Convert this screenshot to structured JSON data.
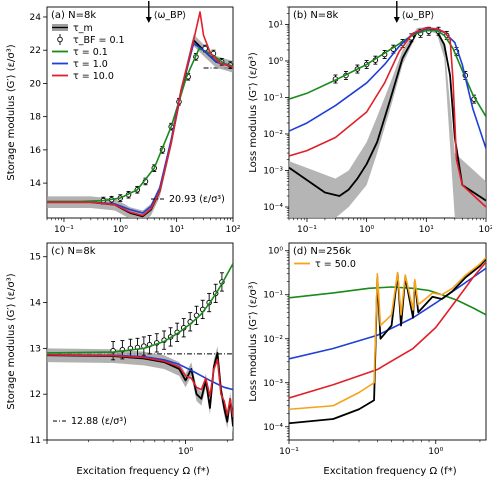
{
  "figure": {
    "xlabel": "Excitation frequency Ω (f*)"
  },
  "chart_data": [
    {
      "id": "a",
      "type": "line",
      "title": "(a) N=8k",
      "ylabel": "Storage modulus ⟨G′⟩ (ε/σ³)",
      "xscale": "log",
      "yscale": "linear",
      "xlim": [
        0.05,
        100
      ],
      "ylim": [
        11.9,
        24.6
      ],
      "xticks": [
        {
          "v": 0.1,
          "label": "10⁻¹"
        },
        {
          "v": 1,
          "label": "10⁰"
        },
        {
          "v": 10,
          "label": "10¹"
        },
        {
          "v": 100,
          "label": "10²"
        }
      ],
      "yticks": [
        {
          "v": 14,
          "label": "14"
        },
        {
          "v": 16,
          "label": "16"
        },
        {
          "v": 18,
          "label": "18"
        },
        {
          "v": 20,
          "label": "20"
        },
        {
          "v": 22,
          "label": "22"
        },
        {
          "v": 24,
          "label": "24"
        }
      ],
      "arrow": {
        "x": 3.2,
        "label": "⟨ω_BP⟩"
      },
      "reference": {
        "y": 20.93,
        "x_from": 30,
        "label": "20.93 (ε/σ³)"
      },
      "legend": [
        {
          "label": "τ_m",
          "kind": "band"
        },
        {
          "label": "τ_BF = 0.1",
          "kind": "errorbar"
        },
        {
          "label": "τ = 0.1",
          "kind": "line",
          "color": "#1a8a1a"
        },
        {
          "label": "τ = 1.0",
          "kind": "line",
          "color": "#1f3fd6"
        },
        {
          "label": "τ = 10.0",
          "kind": "line",
          "color": "#e0202a"
        }
      ],
      "series": [
        {
          "name": "τ_m",
          "color": "#000000",
          "band": 0.35,
          "x": [
            0.05,
            0.3,
            0.8,
            1.5,
            2.5,
            3.5,
            5,
            8,
            12,
            20,
            30,
            50,
            100
          ],
          "y": [
            12.85,
            12.85,
            12.7,
            12.2,
            12.0,
            12.4,
            13.5,
            16.5,
            19.5,
            22.6,
            22.0,
            21.3,
            21.0
          ]
        },
        {
          "name": "τ_BF = 0.1",
          "color": "#000000",
          "markers": true,
          "x": [
            0.5,
            0.7,
            1,
            1.4,
            2,
            2.8,
            4,
            5.6,
            8,
            11,
            16,
            22,
            32,
            45,
            63,
            90
          ],
          "y": [
            12.95,
            13.0,
            13.1,
            13.3,
            13.6,
            14.1,
            14.9,
            16.0,
            17.4,
            18.9,
            20.4,
            21.6,
            22.1,
            21.8,
            21.3,
            21.1
          ]
        },
        {
          "name": "τ = 0.1",
          "color": "#1a8a1a",
          "x": [
            0.05,
            0.2,
            0.5,
            1,
            2,
            4,
            8,
            15,
            25,
            40,
            70,
            100
          ],
          "y": [
            12.9,
            12.9,
            12.95,
            13.1,
            13.6,
            14.9,
            17.4,
            20.4,
            22.1,
            21.8,
            21.2,
            21.05
          ]
        },
        {
          "name": "τ = 1.0",
          "color": "#1f3fd6",
          "x": [
            0.05,
            0.3,
            0.8,
            1.5,
            2.5,
            3.5,
            5,
            8,
            12,
            20,
            30,
            50,
            100
          ],
          "y": [
            12.85,
            12.85,
            12.75,
            12.4,
            12.2,
            12.6,
            13.7,
            16.6,
            19.6,
            22.4,
            22.0,
            21.3,
            21.0
          ]
        },
        {
          "name": "τ = 10.0",
          "color": "#e0202a",
          "x": [
            0.05,
            0.3,
            0.8,
            1.5,
            2.5,
            3.5,
            5,
            8,
            12,
            20,
            26,
            30,
            40,
            60,
            100
          ],
          "y": [
            12.85,
            12.85,
            12.7,
            12.25,
            12.05,
            12.45,
            13.5,
            16.4,
            19.6,
            22.6,
            24.3,
            22.9,
            21.8,
            21.2,
            21.0
          ]
        }
      ]
    },
    {
      "id": "b",
      "type": "line",
      "title": "(b) N=8k",
      "ylabel": "Loss modulus ⟨G″⟩ (ε/σ³)",
      "xscale": "log",
      "yscale": "log",
      "xlim": [
        0.05,
        100
      ],
      "ylim": [
        5e-05,
        30
      ],
      "xticks": [
        {
          "v": 0.1,
          "label": "10⁻¹"
        },
        {
          "v": 1,
          "label": "10⁰"
        },
        {
          "v": 10,
          "label": "10¹"
        },
        {
          "v": 100,
          "label": "10²"
        }
      ],
      "yticks": [
        {
          "v": 0.0001,
          "label": "10⁻⁴"
        },
        {
          "v": 0.001,
          "label": "10⁻³"
        },
        {
          "v": 0.01,
          "label": "10⁻²"
        },
        {
          "v": 0.1,
          "label": "10⁻¹"
        },
        {
          "v": 1,
          "label": "10⁰"
        },
        {
          "v": 10,
          "label": "10¹"
        }
      ],
      "arrow": {
        "x": 3.2,
        "label": "⟨ω_BP⟩"
      },
      "series": [
        {
          "name": "τ_m band",
          "color": "#000000",
          "band_lo": [
            5e-05,
            5e-05,
            0.0001,
            0.0004,
            0.003,
            0.05,
            0.8,
            5.5,
            7.0,
            5.5,
            1.2,
            5e-05,
            5e-05
          ],
          "band_hi": [
            0.0018,
            0.0006,
            0.001,
            0.006,
            0.03,
            0.25,
            2.0,
            8.0,
            8.5,
            7.0,
            3.0,
            0.003,
            0.0005
          ],
          "x": [
            0.05,
            0.3,
            0.5,
            1,
            1.5,
            2.5,
            4,
            7,
            10,
            15,
            20,
            30,
            100
          ]
        },
        {
          "name": "τ_m",
          "color": "#000000",
          "x": [
            0.05,
            0.2,
            0.35,
            0.5,
            0.7,
            1,
            1.5,
            2.5,
            4,
            7,
            10,
            15,
            20,
            25,
            30,
            40,
            100
          ],
          "y": [
            0.0012,
            0.00025,
            0.0002,
            0.0003,
            0.0006,
            0.0015,
            0.006,
            0.09,
            1.2,
            6.3,
            8.0,
            6.6,
            2.8,
            0.4,
            0.008,
            0.0004,
            0.00015
          ]
        },
        {
          "name": "τ_BF = 0.1",
          "color": "#000000",
          "markers": true,
          "x": [
            0.3,
            0.45,
            0.7,
            1,
            1.4,
            2,
            2.8,
            4,
            5.6,
            8,
            11,
            16,
            22,
            32,
            45,
            63
          ],
          "y": [
            0.32,
            0.4,
            0.6,
            0.8,
            1.05,
            1.5,
            2.1,
            3.0,
            4.3,
            5.7,
            6.5,
            6.5,
            5.0,
            1.8,
            0.4,
            0.09
          ]
        },
        {
          "name": "τ = 0.1",
          "color": "#1a8a1a",
          "x": [
            0.05,
            0.1,
            0.3,
            1,
            3,
            6,
            10,
            15,
            20,
            28,
            40,
            60,
            100
          ],
          "y": [
            0.09,
            0.13,
            0.3,
            0.8,
            2.5,
            5.2,
            6.8,
            6.8,
            5.0,
            2.2,
            0.55,
            0.12,
            0.03
          ]
        },
        {
          "name": "τ = 1.0",
          "color": "#1f3fd6",
          "x": [
            0.05,
            0.1,
            0.3,
            1,
            2,
            3.5,
            6,
            10,
            15,
            20,
            30,
            40,
            60,
            100
          ],
          "y": [
            0.012,
            0.02,
            0.06,
            0.25,
            0.8,
            2.5,
            5.6,
            7.6,
            7.4,
            6.0,
            3.2,
            0.8,
            0.05,
            0.004
          ]
        },
        {
          "name": "τ = 10.0",
          "color": "#e0202a",
          "x": [
            0.05,
            0.1,
            0.3,
            1,
            2,
            3.5,
            6,
            10,
            15,
            20,
            25,
            28,
            32,
            40,
            100
          ],
          "y": [
            0.0025,
            0.0035,
            0.008,
            0.04,
            0.25,
            1.8,
            5.8,
            8.0,
            7.6,
            6.2,
            4.0,
            0.3,
            0.002,
            0.0004,
            0.0001
          ]
        }
      ]
    },
    {
      "id": "c",
      "type": "line",
      "title": "(c) N=8k",
      "ylabel": "Storage modulus ⟨G′⟩ (ε/σ³)",
      "xscale": "log",
      "yscale": "linear",
      "xlim": [
        0.1,
        2.2
      ],
      "ylim": [
        11.0,
        15.3
      ],
      "xticks": [
        {
          "v": 0.1,
          "label": ""
        },
        {
          "v": 1,
          "label": "10⁰"
        }
      ],
      "yticks": [
        {
          "v": 11,
          "label": "11"
        },
        {
          "v": 12,
          "label": "12"
        },
        {
          "v": 13,
          "label": "13"
        },
        {
          "v": 14,
          "label": "14"
        },
        {
          "v": 15,
          "label": "15"
        }
      ],
      "reference": {
        "y": 12.88,
        "x_from": 0.1,
        "label": "12.88 (ε/σ³)"
      },
      "series": [
        {
          "name": "τ_m",
          "color": "#000000",
          "band": 0.15,
          "x": [
            0.1,
            0.3,
            0.5,
            0.7,
            0.9,
            1.0,
            1.1,
            1.2,
            1.3,
            1.4,
            1.5,
            1.6,
            1.7,
            1.8,
            1.9,
            2.0,
            2.1,
            2.2
          ],
          "y": [
            12.85,
            12.83,
            12.78,
            12.7,
            12.55,
            12.3,
            12.55,
            12.0,
            11.9,
            12.3,
            11.7,
            12.6,
            12.9,
            12.1,
            11.7,
            11.4,
            11.9,
            11.3
          ]
        },
        {
          "name": "τ_BF = 0.1",
          "color": "#000000",
          "markers": true,
          "x": [
            0.3,
            0.35,
            0.4,
            0.45,
            0.5,
            0.55,
            0.62,
            0.7,
            0.78,
            0.87,
            0.97,
            1.08,
            1.2,
            1.33,
            1.48,
            1.65,
            1.83
          ],
          "y": [
            12.95,
            12.97,
            13.0,
            13.02,
            13.05,
            13.08,
            13.12,
            13.18,
            13.25,
            13.35,
            13.45,
            13.58,
            13.72,
            13.85,
            14.0,
            14.2,
            14.45
          ]
        },
        {
          "name": "τ = 0.1",
          "color": "#1a8a1a",
          "x": [
            0.1,
            0.3,
            0.5,
            0.7,
            0.9,
            1.1,
            1.3,
            1.5,
            1.7,
            1.9,
            2.2
          ],
          "y": [
            12.9,
            12.92,
            13.0,
            13.15,
            13.35,
            13.55,
            13.75,
            14.0,
            14.25,
            14.5,
            14.85
          ]
        },
        {
          "name": "τ = 1.0",
          "color": "#1f3fd6",
          "x": [
            0.1,
            0.3,
            0.5,
            0.7,
            0.9,
            1.1,
            1.3,
            1.5,
            1.7,
            1.9,
            2.2
          ],
          "y": [
            12.86,
            12.85,
            12.82,
            12.75,
            12.65,
            12.52,
            12.4,
            12.3,
            12.22,
            12.15,
            12.1
          ]
        },
        {
          "name": "τ = 10.0",
          "color": "#e0202a",
          "x": [
            0.1,
            0.3,
            0.5,
            0.7,
            0.9,
            1.0,
            1.1,
            1.2,
            1.3,
            1.4,
            1.5,
            1.6,
            1.7,
            1.8,
            1.9,
            2.0,
            2.1,
            2.2
          ],
          "y": [
            12.86,
            12.84,
            12.8,
            12.72,
            12.6,
            12.4,
            12.35,
            12.15,
            12.1,
            12.35,
            11.95,
            12.55,
            12.75,
            12.0,
            11.85,
            11.55,
            11.9,
            11.5
          ]
        }
      ]
    },
    {
      "id": "d",
      "type": "line",
      "title": "(d) N=256k",
      "ylabel": "Loss modulus ⟨G″⟩ (ε/σ³)",
      "xscale": "log",
      "yscale": "log",
      "xlim": [
        0.1,
        2.2
      ],
      "ylim": [
        5e-05,
        1.5
      ],
      "xticks": [
        {
          "v": 0.1,
          "label": "10⁻¹"
        },
        {
          "v": 1,
          "label": "10⁰"
        }
      ],
      "yticks": [
        {
          "v": 0.0001,
          "label": "10⁻⁴"
        },
        {
          "v": 0.001,
          "label": "10⁻³"
        },
        {
          "v": 0.01,
          "label": "10⁻²"
        },
        {
          "v": 0.1,
          "label": "10⁻¹"
        },
        {
          "v": 1,
          "label": "10⁰"
        }
      ],
      "legend": [
        {
          "label": "τ = 50.0",
          "kind": "line",
          "color": "#f5a31a"
        }
      ],
      "series": [
        {
          "name": "τ = 0.1",
          "color": "#1a8a1a",
          "x": [
            0.1,
            0.2,
            0.35,
            0.5,
            0.7,
            0.9,
            1.1,
            1.4,
            1.8,
            2.2
          ],
          "y": [
            0.085,
            0.11,
            0.14,
            0.15,
            0.14,
            0.125,
            0.1,
            0.075,
            0.05,
            0.035
          ]
        },
        {
          "name": "τ = 1.0",
          "color": "#1f3fd6",
          "x": [
            0.1,
            0.2,
            0.4,
            0.7,
            1.0,
            1.4,
            1.8,
            2.2
          ],
          "y": [
            0.0035,
            0.006,
            0.012,
            0.03,
            0.065,
            0.14,
            0.25,
            0.4
          ]
        },
        {
          "name": "τ = 10.0",
          "color": "#e0202a",
          "x": [
            0.1,
            0.2,
            0.4,
            0.7,
            1.0,
            1.4,
            1.8,
            2.2
          ],
          "y": [
            0.00045,
            0.0009,
            0.002,
            0.006,
            0.018,
            0.08,
            0.25,
            0.55
          ]
        },
        {
          "name": "τ_m",
          "color": "#000000",
          "x": [
            0.1,
            0.2,
            0.3,
            0.38,
            0.4,
            0.42,
            0.5,
            0.55,
            0.58,
            0.62,
            0.7,
            0.72,
            0.76,
            0.85,
            0.95,
            1.1,
            1.3,
            1.6,
            2.0,
            2.2
          ],
          "y": [
            0.00012,
            0.00015,
            0.00025,
            0.0004,
            0.25,
            0.01,
            0.02,
            0.3,
            0.02,
            0.25,
            0.03,
            0.2,
            0.04,
            0.06,
            0.09,
            0.08,
            0.12,
            0.25,
            0.45,
            0.65
          ]
        },
        {
          "name": "τ = 50.0",
          "color": "#f5a31a",
          "x": [
            0.1,
            0.2,
            0.3,
            0.38,
            0.4,
            0.42,
            0.5,
            0.55,
            0.58,
            0.62,
            0.7,
            0.72,
            0.76,
            0.85,
            0.95,
            1.1,
            1.3,
            1.6,
            2.0,
            2.2
          ],
          "y": [
            0.00025,
            0.0003,
            0.0006,
            0.001,
            0.3,
            0.02,
            0.035,
            0.32,
            0.035,
            0.28,
            0.045,
            0.22,
            0.06,
            0.08,
            0.11,
            0.1,
            0.14,
            0.28,
            0.5,
            0.7
          ]
        }
      ]
    }
  ]
}
